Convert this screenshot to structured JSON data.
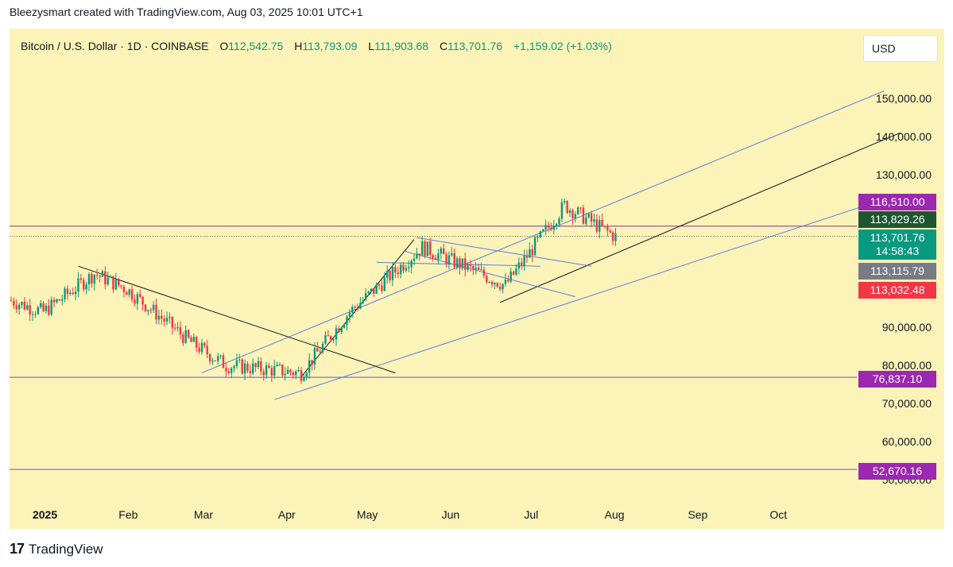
{
  "header": {
    "attribution": "Bleezysmart created with TradingView.com, Aug 03, 2025 10:01 UTC+1"
  },
  "legend": {
    "symbol": "Bitcoin / U.S. Dollar · 1D · COINBASE",
    "open_label": "O",
    "open": "112,542.75",
    "high_label": "H",
    "high": "113,793.09",
    "low_label": "L",
    "low": "111,903.68",
    "close_label": "C",
    "close": "113,701.76",
    "change": "+1,159.02 (+1.03%)"
  },
  "currency": "USD",
  "colors": {
    "background": "#fbf3b7",
    "up": "#089981",
    "down": "#f23645",
    "channel": "#5b7ee5",
    "trend": "#131722",
    "level": "#5b5bd6",
    "resistance": "#9c27b0"
  },
  "price_labels": [
    {
      "value": "116,510.00",
      "color": "#9c27b0",
      "price": 116510
    },
    {
      "value": "113,829.26",
      "color": "#1e5631",
      "price": 113829.26
    },
    {
      "value": "113,701.76",
      "color": "#089981",
      "price": 113701.76
    },
    {
      "value": "14:58:43",
      "color": "#089981"
    },
    {
      "value": "113,115.79",
      "color": "#787b86",
      "price": 113115.79
    },
    {
      "value": "113,032.48",
      "color": "#f23645",
      "price": 113032.48
    },
    {
      "value": "76,837.10",
      "color": "#9c27b0",
      "price": 76837.1
    },
    {
      "value": "52,670.16",
      "color": "#9c27b0",
      "price": 52670.16
    }
  ],
  "chart_data": {
    "type": "candlestick",
    "yaxis_ticks": [
      "150,000.00",
      "140,000.00",
      "130,000.00",
      "90,000.00",
      "80,000.00",
      "70,000.00",
      "60,000.00",
      "50,000.00"
    ],
    "yaxis_values": [
      150000,
      140000,
      130000,
      90000,
      80000,
      70000,
      60000,
      50000
    ],
    "xaxis_ticks": [
      "2025",
      "Feb",
      "Mar",
      "Apr",
      "May",
      "Jun",
      "Jul",
      "Aug",
      "Sep",
      "Oct"
    ],
    "horizontal_levels": [
      116510,
      113829.26,
      76837.1,
      52670.16
    ],
    "close_path_estimate": [
      {
        "date": "2024-12-20",
        "close": 97000
      },
      {
        "date": "2025-01-01",
        "close": 94000
      },
      {
        "date": "2025-01-20",
        "close": 104000
      },
      {
        "date": "2025-02-01",
        "close": 100000
      },
      {
        "date": "2025-02-25",
        "close": 86000
      },
      {
        "date": "2025-03-10",
        "close": 80000
      },
      {
        "date": "2025-04-07",
        "close": 78000
      },
      {
        "date": "2025-04-25",
        "close": 94000
      },
      {
        "date": "2025-05-22",
        "close": 111000
      },
      {
        "date": "2025-06-22",
        "close": 101000
      },
      {
        "date": "2025-07-14",
        "close": 122000
      },
      {
        "date": "2025-08-02",
        "close": 113700
      }
    ]
  },
  "footer": {
    "brand": "TradingView",
    "logo": "tv-logo-icon"
  }
}
